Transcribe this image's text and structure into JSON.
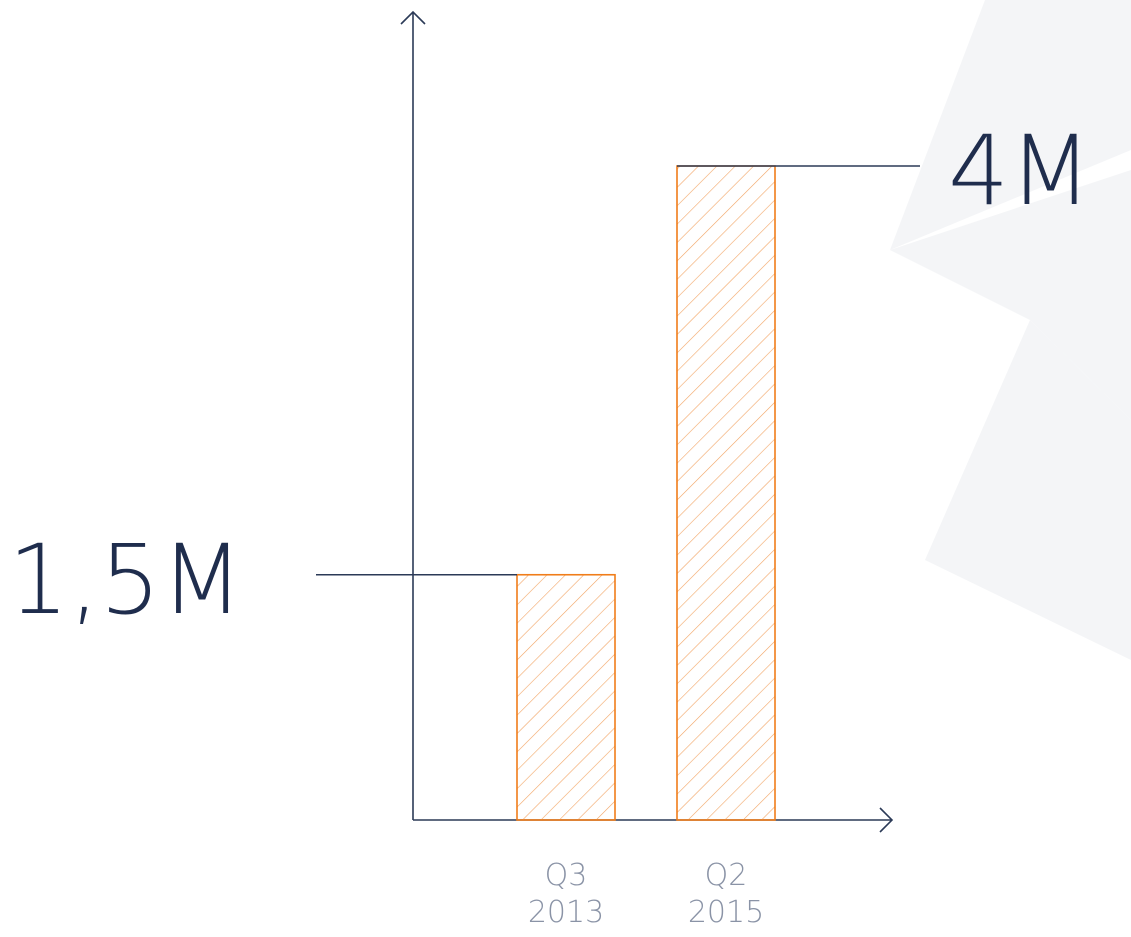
{
  "chart_data": {
    "type": "bar",
    "categories": [
      [
        "Q3",
        "2013"
      ],
      [
        "Q2",
        "2015"
      ]
    ],
    "values": [
      1.5,
      4
    ],
    "value_labels": [
      "1,5M",
      "4M"
    ],
    "unit": "M",
    "ylim": [
      0,
      4
    ],
    "grid": false,
    "legend": "none",
    "bar_style": "diagonal-hatched",
    "colors": {
      "axis": "#2b3a57",
      "bar_stroke": "#f07d1a",
      "hatch": "#f2a565",
      "value_text": "#1f2d4d",
      "tick_text": "#8a93a6",
      "background_shape": "#f4f5f7"
    }
  }
}
